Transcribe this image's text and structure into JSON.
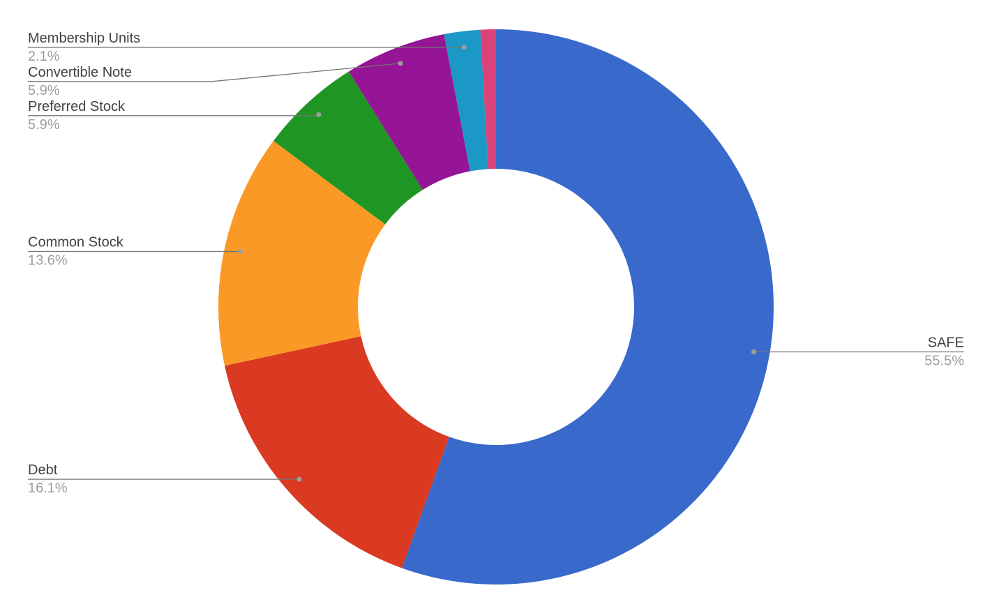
{
  "chart_data": {
    "type": "donut",
    "categories": [
      "SAFE",
      "Debt",
      "Common Stock",
      "Preferred Stock",
      "Convertible Note",
      "Membership Units",
      null
    ],
    "values": [
      55.5,
      16.1,
      13.6,
      5.9,
      5.9,
      2.1,
      0.9
    ],
    "value_labels": [
      "55.5%",
      "16.1%",
      "13.6%",
      "5.9%",
      "5.9%",
      "2.1%",
      null
    ],
    "colors": [
      "#3869cb",
      "#d93a21",
      "#fb9927",
      "#1f9624",
      "#961596",
      "#1c98c7",
      "#db4278"
    ]
  }
}
